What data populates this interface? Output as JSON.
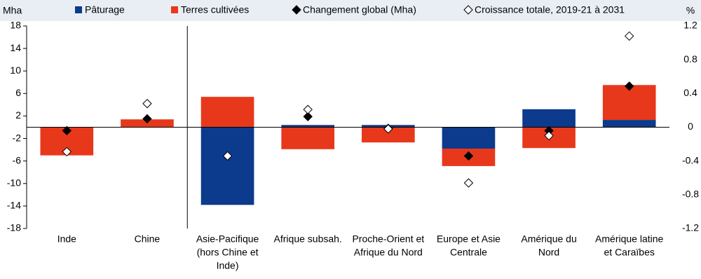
{
  "chart_data": {
    "type": "bar",
    "y_label": "Mha",
    "y2_label": "%",
    "categories": [
      [
        "Inde"
      ],
      [
        "Chine"
      ],
      [
        "Asie-Pacifique",
        "(hors Chine et",
        "Inde)"
      ],
      [
        "Afrique subsah."
      ],
      [
        "Proche-Orient et",
        "Afrique du Nord"
      ],
      [
        "Europe et Asie",
        "Centrale"
      ],
      [
        "Amérique du",
        "Nord"
      ],
      [
        "Amérique latine",
        "et Caraïbes"
      ]
    ],
    "series": [
      {
        "name": "Pâturage",
        "type": "bar",
        "color": "#0c3a8c",
        "values": [
          0,
          0,
          -13.8,
          0.4,
          0.4,
          -3.8,
          3.2,
          1.3
        ]
      },
      {
        "name": "Terres cultivées",
        "type": "bar",
        "color": "#e8381b",
        "values": [
          -5,
          1.4,
          5.4,
          -3.9,
          -2.7,
          -3.1,
          -3.7,
          6.2
        ]
      },
      {
        "name": "Changement global (Mha)",
        "type": "diamond",
        "color": "#000000",
        "values": [
          -0.6,
          1.5,
          null,
          1.9,
          -0.2,
          -5.1,
          -0.6,
          7.3
        ]
      },
      {
        "name": "Croissance totale, 2019-21 à 2031",
        "type": "diamond",
        "color": "#ffffff",
        "axis": "y2",
        "values": [
          -0.29,
          0.28,
          -0.34,
          0.21,
          -0.02,
          -0.66,
          -0.1,
          1.08
        ]
      }
    ],
    "ylim": [
      -18,
      18
    ],
    "yticks": [
      18,
      14,
      10,
      6,
      2,
      -2,
      -6,
      -10,
      -14,
      -18
    ],
    "y2lim": [
      -1.2,
      1.2
    ],
    "y2ticks": [
      1.2,
      0.8,
      0.4,
      0,
      -0.4,
      -0.8,
      -1.2
    ],
    "separator_after": 1
  }
}
